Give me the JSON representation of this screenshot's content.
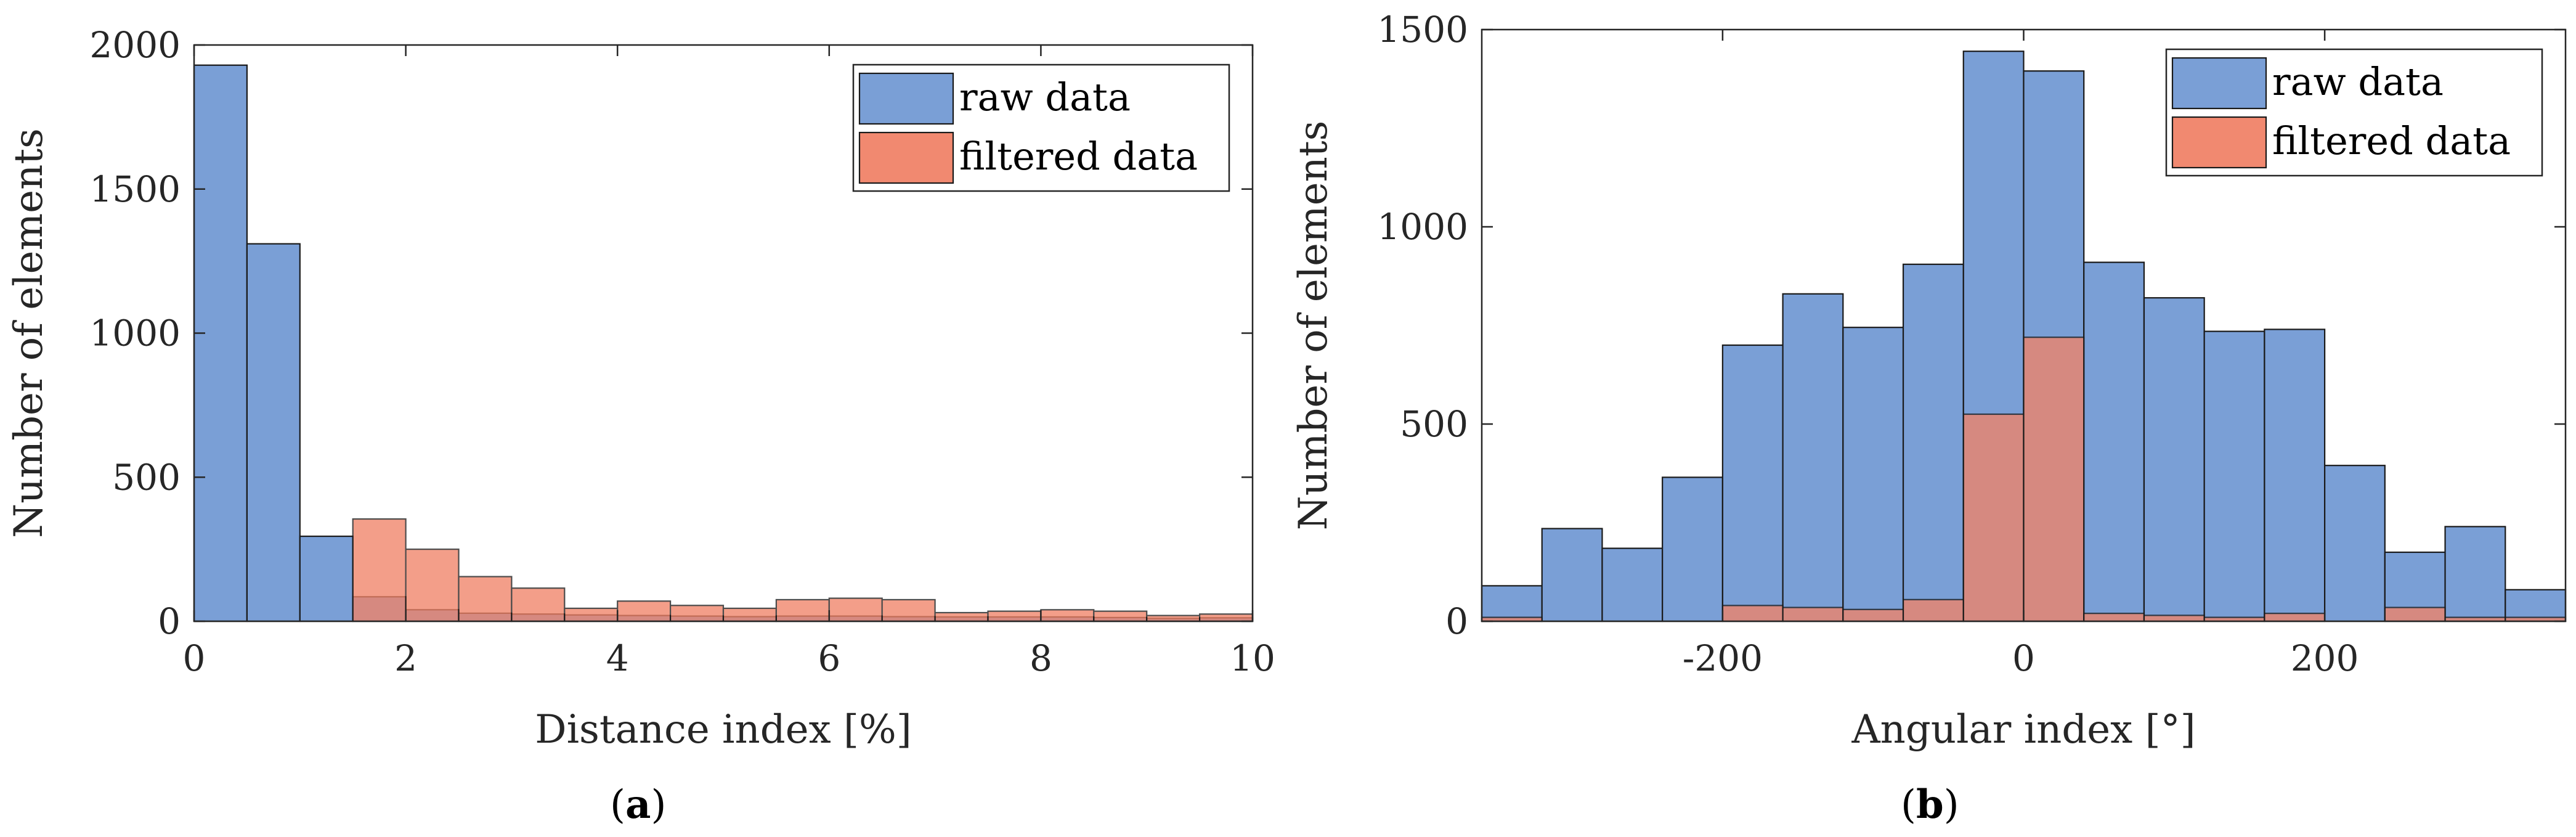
{
  "chart_data": [
    {
      "type": "histogram",
      "panel_label": "a",
      "xlabel": "Distance index [%]",
      "ylabel": "Number of elements",
      "xlim": [
        0,
        10
      ],
      "ylim": [
        0,
        2000
      ],
      "xticks": [
        0,
        2,
        4,
        6,
        8,
        10
      ],
      "yticks": [
        0,
        500,
        1000,
        1500,
        2000
      ],
      "legend_position": "top-right",
      "series": [
        {
          "name": "raw data",
          "color": "#7a9fd6",
          "bin_edges": [
            0,
            0.5,
            1.0,
            1.5,
            2.0,
            2.5,
            3.0,
            3.5,
            4.0,
            4.5,
            5.0,
            5.5,
            6.0,
            6.5,
            7.0,
            7.5,
            8.0,
            8.5,
            9.0,
            9.5,
            10.0
          ],
          "values": [
            1930,
            1310,
            295,
            85,
            40,
            28,
            25,
            22,
            20,
            18,
            16,
            18,
            18,
            16,
            15,
            15,
            15,
            13,
            10,
            12
          ]
        },
        {
          "name": "filtered data",
          "color": "#f08368",
          "bin_edges": [
            1.5,
            2.0,
            2.5,
            3.0,
            3.5,
            4.0,
            4.5,
            5.0,
            5.5,
            6.0,
            6.5,
            7.0,
            7.5,
            8.0,
            8.5,
            9.0,
            9.5,
            10.0
          ],
          "values": [
            355,
            250,
            155,
            115,
            45,
            70,
            55,
            45,
            75,
            80,
            75,
            30,
            35,
            40,
            35,
            20,
            25
          ]
        }
      ]
    },
    {
      "type": "histogram",
      "panel_label": "b",
      "xlabel": "Angular index [°]",
      "ylabel": "Number of elements",
      "xlim": [
        -360,
        360
      ],
      "ylim": [
        0,
        1500
      ],
      "xticks": [
        -200,
        0,
        200
      ],
      "xtick_labels": [
        "-200",
        "0",
        "200"
      ],
      "yticks": [
        0,
        500,
        1000,
        1500
      ],
      "legend_position": "top-right",
      "series": [
        {
          "name": "raw data",
          "color": "#7a9fd6",
          "bin_edges": [
            -360,
            -320,
            -280,
            -240,
            -200,
            -160,
            -120,
            -80,
            -40,
            0,
            40,
            80,
            120,
            160,
            200,
            240,
            280,
            320,
            360
          ],
          "values": [
            90,
            235,
            185,
            365,
            700,
            830,
            745,
            905,
            1445,
            1395,
            910,
            820,
            735,
            740,
            395,
            175,
            240,
            80
          ]
        },
        {
          "name": "filtered data",
          "color": "#f08368",
          "bin_edges": [
            -360,
            -320,
            -280,
            -240,
            -200,
            -160,
            -120,
            -80,
            -40,
            0,
            40,
            80,
            120,
            160,
            200,
            240,
            280,
            320,
            360
          ],
          "values": [
            10,
            0,
            0,
            0,
            40,
            35,
            30,
            55,
            525,
            720,
            20,
            15,
            10,
            20,
            0,
            35,
            10,
            10
          ]
        }
      ]
    }
  ],
  "captions": [
    "(a)",
    "(b)"
  ]
}
